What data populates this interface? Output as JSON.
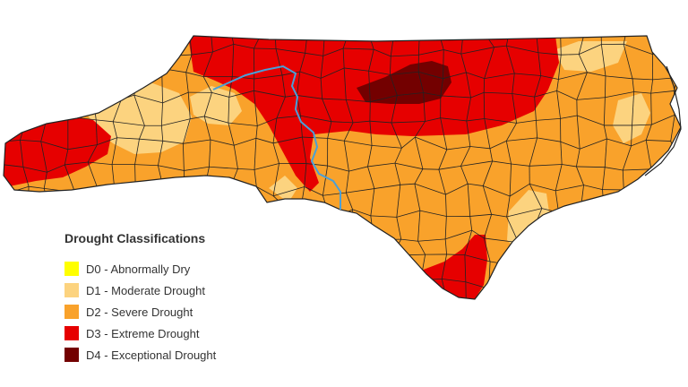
{
  "legend": {
    "title": "Drought Classifications",
    "items": [
      {
        "code": "D0",
        "label": "D0 - Abnormally Dry",
        "color": "#ffff00"
      },
      {
        "code": "D1",
        "label": "D1 - Moderate Drought",
        "color": "#fcd37f"
      },
      {
        "code": "D2",
        "label": "D2 - Severe Drought",
        "color": "#f9a22b"
      },
      {
        "code": "D3",
        "label": "D3 - Extreme Drought",
        "color": "#e60000"
      },
      {
        "code": "D4",
        "label": "D4 - Exceptional Drought",
        "color": "#730000"
      }
    ]
  },
  "map": {
    "colors": {
      "river": "#4a9fd8",
      "county_border": "#222222",
      "background": "#ffffff"
    }
  }
}
